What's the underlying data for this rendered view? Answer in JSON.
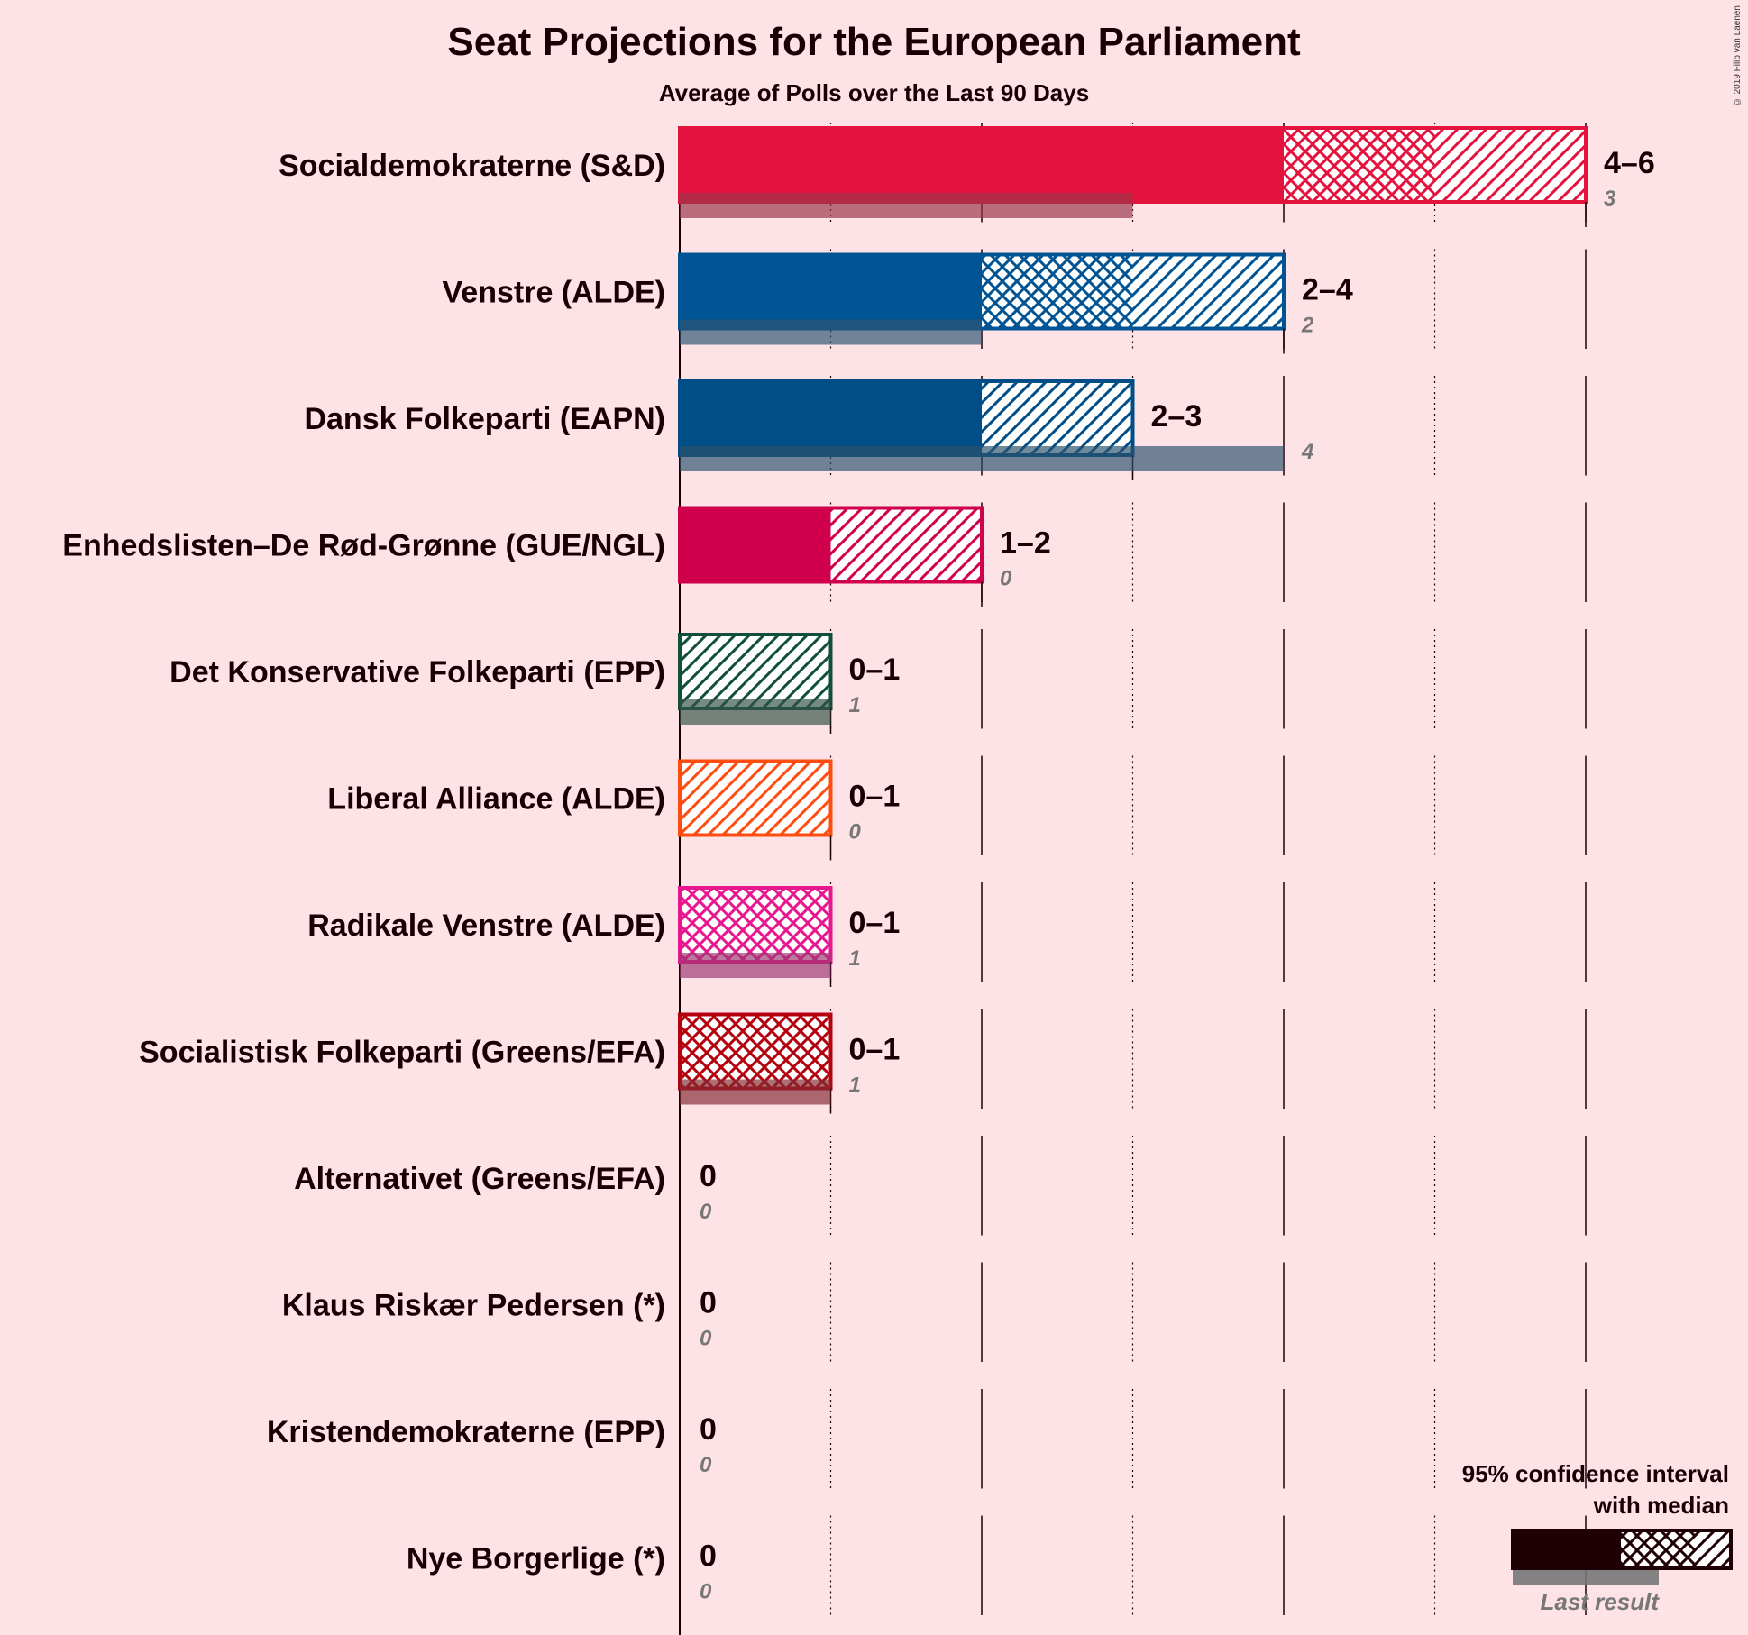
{
  "chart_data": {
    "type": "bar",
    "title": "Seat Projections for the European Parliament",
    "subtitle": "Average of Polls over the Last 90 Days",
    "credit": "© 2019 Filip van Laenen",
    "xlim": [
      0,
      6
    ],
    "series": [
      {
        "party": "Socialdemokraterne (S&D)",
        "color": "#E4133D",
        "low": 4,
        "median": 5,
        "high": 6,
        "range_label": "4–6",
        "last_result": 3,
        "last_label": "3"
      },
      {
        "party": "Venstre (ALDE)",
        "color": "#005493",
        "low": 2,
        "median": 3,
        "high": 4,
        "range_label": "2–4",
        "last_result": 2,
        "last_label": "2"
      },
      {
        "party": "Dansk Folkeparti (EAPN)",
        "color": "#004D88",
        "low": 2,
        "median": 2,
        "high": 3,
        "range_label": "2–3",
        "last_result": 4,
        "last_label": "4"
      },
      {
        "party": "Enhedslisten–De Rød-Grønne (GUE/NGL)",
        "color": "#D0004D",
        "low": 1,
        "median": 1,
        "high": 2,
        "range_label": "1–2",
        "last_result": 0,
        "last_label": "0"
      },
      {
        "party": "Det Konservative Folkeparti (EPP)",
        "color": "#124F3B",
        "low": 0,
        "median": 0,
        "high": 1,
        "range_label": "0–1",
        "last_result": 1,
        "last_label": "1"
      },
      {
        "party": "Liberal Alliance (ALDE)",
        "color": "#FF4D12",
        "low": 0,
        "median": 0,
        "high": 1,
        "range_label": "0–1",
        "last_result": 0,
        "last_label": "0"
      },
      {
        "party": "Radikale Venstre (ALDE)",
        "color": "#E8168F",
        "low": 0,
        "median": 1,
        "high": 1,
        "range_label": "0–1",
        "last_result": 1,
        "last_label": "1"
      },
      {
        "party": "Socialistisk Folkeparti (Greens/EFA)",
        "color": "#B5000E",
        "low": 0,
        "median": 1,
        "high": 1,
        "range_label": "0–1",
        "last_result": 1,
        "last_label": "1"
      },
      {
        "party": "Alternativet (Greens/EFA)",
        "color": "#2B8738",
        "low": 0,
        "median": 0,
        "high": 0,
        "range_label": "0",
        "last_result": 0,
        "last_label": "0"
      },
      {
        "party": "Klaus Riskær Pedersen (*)",
        "color": "#555555",
        "low": 0,
        "median": 0,
        "high": 0,
        "range_label": "0",
        "last_result": 0,
        "last_label": "0"
      },
      {
        "party": "Kristendemokraterne (EPP)",
        "color": "#F4A000",
        "low": 0,
        "median": 0,
        "high": 0,
        "range_label": "0",
        "last_result": 0,
        "last_label": "0"
      },
      {
        "party": "Nye Borgerlige (*)",
        "color": "#054F5C",
        "low": 0,
        "median": 0,
        "high": 0,
        "range_label": "0",
        "last_result": 0,
        "last_label": "0"
      }
    ],
    "legend": {
      "line1": "95% confidence interval",
      "line2": "with median",
      "last_result": "Last result",
      "color": "#1F0004"
    }
  }
}
